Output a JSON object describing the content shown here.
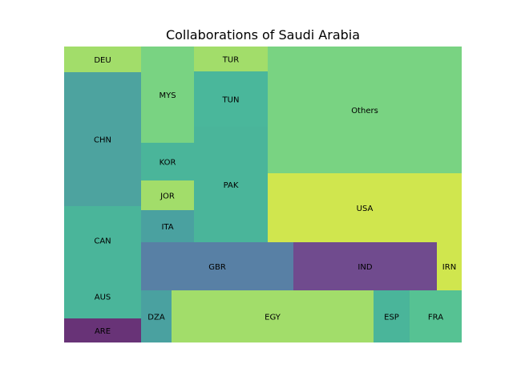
{
  "chart_data": {
    "type": "treemap",
    "title": "Collaborations of Saudi Arabia",
    "items": [
      {
        "label": "DEU",
        "value": 30,
        "color": "#a2dd6a"
      },
      {
        "label": "CHN",
        "value": 160,
        "color": "#4da39f"
      },
      {
        "label": "CAN",
        "value": 82,
        "color": "#4ab59a"
      },
      {
        "label": "AUS",
        "value": 52,
        "color": "#4ab59a"
      },
      {
        "label": "ARE",
        "value": 28,
        "color": "#683377"
      },
      {
        "label": "MYS",
        "value": 80,
        "color": "#79d382"
      },
      {
        "label": "KOR",
        "value": 30,
        "color": "#4ab59a"
      },
      {
        "label": "JOR",
        "value": 24,
        "color": "#a2dd6a"
      },
      {
        "label": "ITA",
        "value": 24,
        "color": "#4aa1a0"
      },
      {
        "label": "TUR",
        "value": 20,
        "color": "#a2dd6a"
      },
      {
        "label": "TUN",
        "value": 46,
        "color": "#4ab79b"
      },
      {
        "label": "PAK",
        "value": 96,
        "color": "#4ab59a"
      },
      {
        "label": "Others",
        "value": 238,
        "color": "#79d382"
      },
      {
        "label": "USA",
        "value": 130,
        "color": "#d0e64e"
      },
      {
        "label": "GBR",
        "value": 111,
        "color": "#5880a5"
      },
      {
        "label": "IND",
        "value": 104,
        "color": "#704b8e"
      },
      {
        "label": "IRN",
        "value": 18,
        "color": "#d0e64e"
      },
      {
        "label": "DZA",
        "value": 25,
        "color": "#4aa1a0"
      },
      {
        "label": "EGY",
        "value": 164,
        "color": "#a2dd6a"
      },
      {
        "label": "ESP",
        "value": 29,
        "color": "#4ab59a"
      },
      {
        "label": "FRA",
        "value": 42,
        "color": "#56c293"
      }
    ]
  }
}
